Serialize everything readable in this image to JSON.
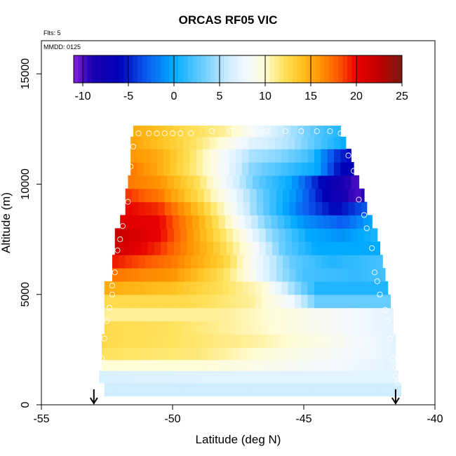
{
  "chart_data": {
    "type": "heatmap",
    "title": "ORCAS RF05 VIC",
    "notes": {
      "flights": "Flts: 5",
      "mmdd": "MMDD: 0125"
    },
    "xlabel": "Latitude (deg N)",
    "ylabel": "Altitude (m)",
    "xlim": [
      -55,
      -40
    ],
    "ylim": [
      0,
      16500
    ],
    "xticks": [
      -55,
      -50,
      -45,
      -40
    ],
    "yticks": [
      0,
      5000,
      10000,
      15000
    ],
    "colorbar": {
      "range": [
        -11,
        25
      ],
      "ticks": [
        -10,
        -5,
        0,
        5,
        10,
        15,
        20,
        25
      ],
      "stops": [
        {
          "v": -11,
          "c": "#8b1fe0"
        },
        {
          "v": -9,
          "c": "#1a00b0"
        },
        {
          "v": -6,
          "c": "#0000b8"
        },
        {
          "v": -3,
          "c": "#0a5cf0"
        },
        {
          "v": 0,
          "c": "#00aaff"
        },
        {
          "v": 3,
          "c": "#66ccff"
        },
        {
          "v": 6,
          "c": "#cfeeff"
        },
        {
          "v": 8,
          "c": "#f4f9ff"
        },
        {
          "v": 10,
          "c": "#fffcd6"
        },
        {
          "v": 12,
          "c": "#ffe25c"
        },
        {
          "v": 14,
          "c": "#ffc21f"
        },
        {
          "v": 16,
          "c": "#ff9500"
        },
        {
          "v": 18,
          "c": "#ff5a00"
        },
        {
          "v": 20,
          "c": "#e80000"
        },
        {
          "v": 22.5,
          "c": "#c00000"
        },
        {
          "v": 25,
          "c": "#7a1810"
        }
      ]
    },
    "rows_altitude_m": [
      700,
      1300,
      1800,
      2300,
      2900,
      3500,
      4100,
      4700,
      5300,
      5900,
      6500,
      7100,
      7700,
      8300,
      8900,
      9500,
      10100,
      10700,
      11300,
      11900,
      12400
    ],
    "row_lat_extent": [
      [
        -52.6,
        -41.3
      ],
      [
        -52.8,
        -41.4
      ],
      [
        -52.7,
        -41.5
      ],
      [
        -52.7,
        -41.5
      ],
      [
        -52.7,
        -41.5
      ],
      [
        -52.6,
        -41.6
      ],
      [
        -52.6,
        -41.6
      ],
      [
        -52.6,
        -41.7
      ],
      [
        -52.6,
        -41.8
      ],
      [
        -52.3,
        -41.9
      ],
      [
        -52.3,
        -42.0
      ],
      [
        -52.2,
        -42.1
      ],
      [
        -52.2,
        -42.2
      ],
      [
        -52.0,
        -42.4
      ],
      [
        -51.8,
        -42.6
      ],
      [
        -51.8,
        -42.7
      ],
      [
        -51.7,
        -42.9
      ],
      [
        -51.6,
        -43.1
      ],
      [
        -51.6,
        -43.2
      ],
      [
        -51.6,
        -43.4
      ],
      [
        -51.5,
        -43.6
      ]
    ],
    "row_profiles": [
      [
        [
          -52.6,
          6
        ],
        [
          -41.3,
          6
        ]
      ],
      [
        [
          -52.8,
          6.5
        ],
        [
          -48,
          7
        ],
        [
          -41.4,
          7
        ]
      ],
      [
        [
          -52.7,
          10
        ],
        [
          -49,
          10
        ],
        [
          -41.5,
          7
        ]
      ],
      [
        [
          -52.7,
          12
        ],
        [
          -49,
          11.5
        ],
        [
          -46,
          9.5
        ],
        [
          -43,
          8
        ],
        [
          -41.5,
          7
        ]
      ],
      [
        [
          -52.7,
          12.5
        ],
        [
          -50,
          12
        ],
        [
          -47,
          11
        ],
        [
          -44,
          9
        ],
        [
          -41.5,
          7
        ]
      ],
      [
        [
          -52.6,
          12.5
        ],
        [
          -50,
          12
        ],
        [
          -47,
          10.5
        ],
        [
          -44,
          8.5
        ],
        [
          -41.6,
          7
        ]
      ],
      [
        [
          -52.6,
          11
        ],
        [
          -48,
          11
        ],
        [
          -44,
          8.5
        ],
        [
          -41.6,
          7
        ]
      ],
      [
        [
          -52.6,
          12.5
        ],
        [
          -49.5,
          12.5
        ],
        [
          -47,
          11
        ],
        [
          -45.5,
          8
        ],
        [
          -44.5,
          3
        ],
        [
          -41.7,
          3
        ]
      ],
      [
        [
          -52.6,
          15
        ],
        [
          -50,
          14
        ],
        [
          -48,
          12
        ],
        [
          -46.5,
          10
        ],
        [
          -45.5,
          5
        ],
        [
          -44.5,
          1
        ],
        [
          -41.8,
          1
        ]
      ],
      [
        [
          -52.3,
          17
        ],
        [
          -50,
          16
        ],
        [
          -48,
          12
        ],
        [
          -47,
          9
        ],
        [
          -46,
          5
        ],
        [
          -45,
          2
        ],
        [
          -43,
          1.5
        ],
        [
          -41.9,
          2
        ]
      ],
      [
        [
          -52.3,
          19.5
        ],
        [
          -50,
          17
        ],
        [
          -48,
          13
        ],
        [
          -46.8,
          8
        ],
        [
          -45.5,
          3
        ],
        [
          -44,
          1
        ],
        [
          -42,
          2
        ]
      ],
      [
        [
          -52.2,
          21.5
        ],
        [
          -50.5,
          19
        ],
        [
          -48.5,
          14
        ],
        [
          -47,
          9
        ],
        [
          -45.8,
          3
        ],
        [
          -44.5,
          0
        ],
        [
          -42.1,
          0
        ]
      ],
      [
        [
          -52.2,
          22
        ],
        [
          -50.5,
          20
        ],
        [
          -49,
          15
        ],
        [
          -47.5,
          10
        ],
        [
          -46.2,
          4
        ],
        [
          -44.8,
          0
        ],
        [
          -43.5,
          -1
        ],
        [
          -42.2,
          1
        ]
      ],
      [
        [
          -52,
          20.5
        ],
        [
          -50.5,
          20
        ],
        [
          -49,
          15
        ],
        [
          -47.8,
          10
        ],
        [
          -46.5,
          4
        ],
        [
          -45,
          -1
        ],
        [
          -43.5,
          -3
        ],
        [
          -42.4,
          0
        ]
      ],
      [
        [
          -51.8,
          20
        ],
        [
          -50.5,
          19
        ],
        [
          -49.3,
          15
        ],
        [
          -48,
          10
        ],
        [
          -46.8,
          4
        ],
        [
          -45.2,
          -2
        ],
        [
          -43.8,
          -6
        ],
        [
          -42.6,
          -3
        ]
      ],
      [
        [
          -51.8,
          19
        ],
        [
          -50.5,
          17
        ],
        [
          -49.2,
          13
        ],
        [
          -48,
          9
        ],
        [
          -46.6,
          3
        ],
        [
          -45.3,
          -1
        ],
        [
          -44,
          -7
        ],
        [
          -43,
          -10
        ],
        [
          -42.7,
          -9
        ]
      ],
      [
        [
          -51.7,
          17
        ],
        [
          -50.5,
          16
        ],
        [
          -49,
          12
        ],
        [
          -48,
          8
        ],
        [
          -46.8,
          3
        ],
        [
          -45.5,
          0
        ],
        [
          -44.3,
          -6
        ],
        [
          -43.4,
          -9
        ],
        [
          -42.9,
          -10
        ]
      ],
      [
        [
          -51.6,
          17
        ],
        [
          -50.5,
          15
        ],
        [
          -49,
          11
        ],
        [
          -48,
          8
        ],
        [
          -47,
          4
        ],
        [
          -45.8,
          2
        ],
        [
          -44.5,
          0
        ],
        [
          -43.6,
          -6
        ],
        [
          -43.1,
          -6
        ]
      ],
      [
        [
          -51.6,
          16
        ],
        [
          -50.5,
          15
        ],
        [
          -49.3,
          12
        ],
        [
          -48,
          8
        ],
        [
          -47,
          5
        ],
        [
          -46,
          4
        ],
        [
          -44.8,
          2
        ],
        [
          -43.8,
          -4
        ],
        [
          -43.2,
          -6
        ]
      ],
      [
        [
          -51.6,
          15.5
        ],
        [
          -50.5,
          14
        ],
        [
          -49.2,
          12
        ],
        [
          -48.2,
          10
        ],
        [
          -47,
          7
        ],
        [
          -45.5,
          5
        ],
        [
          -44.3,
          2
        ],
        [
          -43.4,
          0
        ]
      ],
      [
        [
          -51.5,
          15
        ],
        [
          -50.5,
          14
        ],
        [
          -49.5,
          12.5
        ],
        [
          -48,
          11
        ],
        [
          -46.8,
          8
        ],
        [
          -45.5,
          5
        ],
        [
          -44.3,
          2
        ],
        [
          -43.6,
          1
        ]
      ]
    ],
    "profile_markers": [
      [
        -52.9,
        1400
      ],
      [
        -52.8,
        1700
      ],
      [
        -52.7,
        2100
      ],
      [
        -52.6,
        3000
      ],
      [
        -52.5,
        3800
      ],
      [
        -52.4,
        4400
      ],
      [
        -52.3,
        5000
      ],
      [
        -52.3,
        5400
      ],
      [
        -52.2,
        6000
      ],
      [
        -52.1,
        7000
      ],
      [
        -52.0,
        7500
      ],
      [
        -51.9,
        8100
      ],
      [
        -51.7,
        9200
      ],
      [
        -51.6,
        10800
      ],
      [
        -51.5,
        11700
      ],
      [
        -51.3,
        12300
      ],
      [
        -50.9,
        12300
      ],
      [
        -50.6,
        12300
      ],
      [
        -50.3,
        12300
      ],
      [
        -50.0,
        12300
      ],
      [
        -49.7,
        12300
      ],
      [
        -49.3,
        12300
      ],
      [
        -48.5,
        12400
      ],
      [
        -47.8,
        12400
      ],
      [
        -47.0,
        12400
      ],
      [
        -46.4,
        12400
      ],
      [
        -45.7,
        12400
      ],
      [
        -45.1,
        12400
      ],
      [
        -44.5,
        12400
      ],
      [
        -44.0,
        12400
      ],
      [
        -43.6,
        12300
      ],
      [
        -43.3,
        11300
      ],
      [
        -43.1,
        10600
      ],
      [
        -42.9,
        9300
      ],
      [
        -42.7,
        8600
      ],
      [
        -42.6,
        8000
      ],
      [
        -42.4,
        7100
      ],
      [
        -42.3,
        6000
      ],
      [
        -42.2,
        5600
      ],
      [
        -42.1,
        5000
      ],
      [
        -41.9,
        4300
      ],
      [
        -41.8,
        3800
      ],
      [
        -41.7,
        3000
      ],
      [
        -41.6,
        2100
      ],
      [
        -41.5,
        1700
      ],
      [
        -41.5,
        1300
      ],
      [
        -41.4,
        1000
      ]
    ],
    "arrows_lat": [
      -53.0,
      -41.5
    ],
    "grid": false,
    "legend": "colorbar top, inside plot"
  }
}
